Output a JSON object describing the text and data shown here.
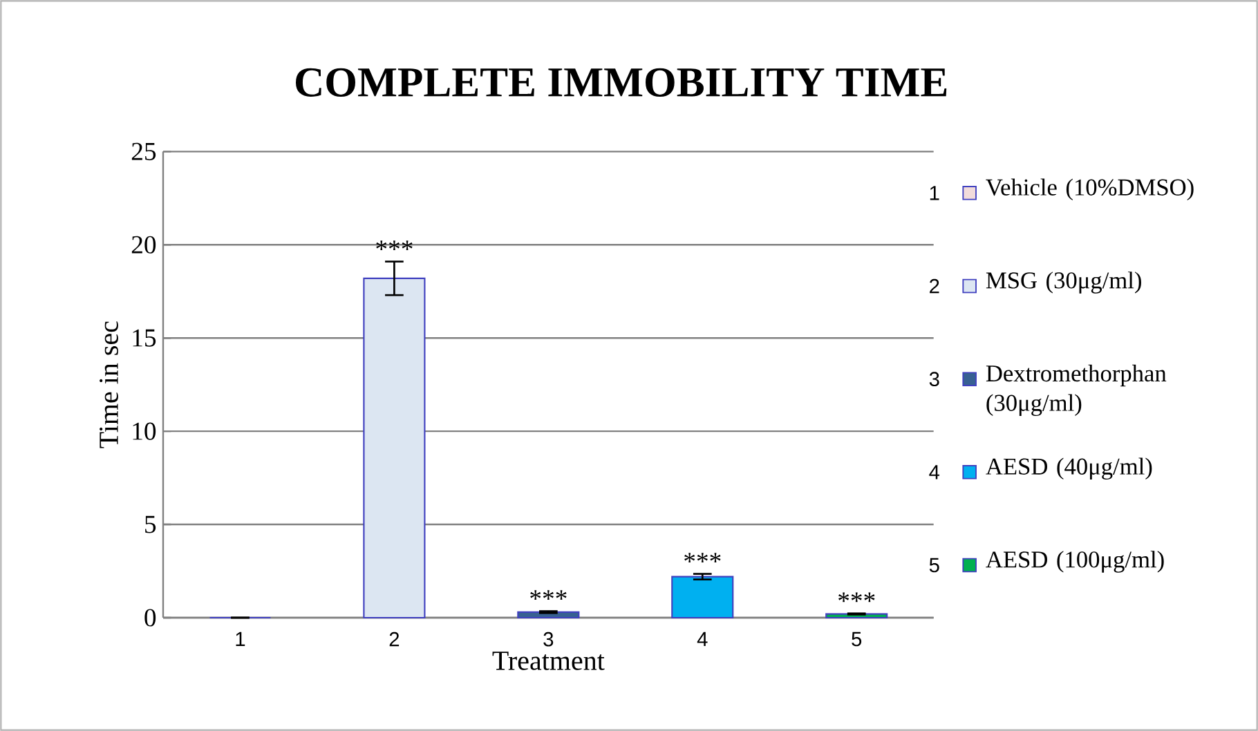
{
  "chart_data": {
    "type": "bar",
    "title": "COMPLETE IMMOBILITY TIME",
    "xlabel": "Treatment",
    "ylabel": "Time in sec",
    "categories": [
      "1",
      "2",
      "3",
      "4",
      "5"
    ],
    "series": [
      {
        "name": "Vehicle (10%DMSO)",
        "color": "#f2dcdb",
        "values": [
          0,
          null,
          null,
          null,
          null
        ]
      },
      {
        "name": "MSG (30μg/ml)",
        "color": "#dce6f2",
        "values": [
          null,
          18.2,
          null,
          null,
          null
        ],
        "errors": [
          null,
          0.9,
          null,
          null,
          null
        ]
      },
      {
        "name": "Dextromethorphan (30μg/ml)",
        "color": "#376092",
        "values": [
          null,
          null,
          0.3,
          null,
          null
        ],
        "errors": [
          null,
          null,
          0.05,
          null,
          null
        ]
      },
      {
        "name": "AESD (40μg/ml)",
        "color": "#00b0f0",
        "values": [
          null,
          null,
          null,
          2.2,
          null
        ],
        "errors": [
          null,
          null,
          null,
          0.15,
          null
        ]
      },
      {
        "name": "AESD (100μg/ml)",
        "color": "#00b050",
        "values": [
          null,
          null,
          null,
          null,
          0.2
        ],
        "errors": [
          null,
          null,
          null,
          null,
          0.03
        ]
      }
    ],
    "annotations": [
      {
        "text": "***",
        "x": "2",
        "y": 19.1
      },
      {
        "text": "***",
        "x": "3",
        "y": 0.35
      },
      {
        "text": "***",
        "x": "4",
        "y": 2.35
      },
      {
        "text": "***",
        "x": "5",
        "y": 0.23
      }
    ],
    "ylim": [
      0,
      25
    ],
    "yticks": [
      0,
      5,
      10,
      15,
      20,
      25
    ],
    "grid": "y",
    "legend": "right"
  }
}
